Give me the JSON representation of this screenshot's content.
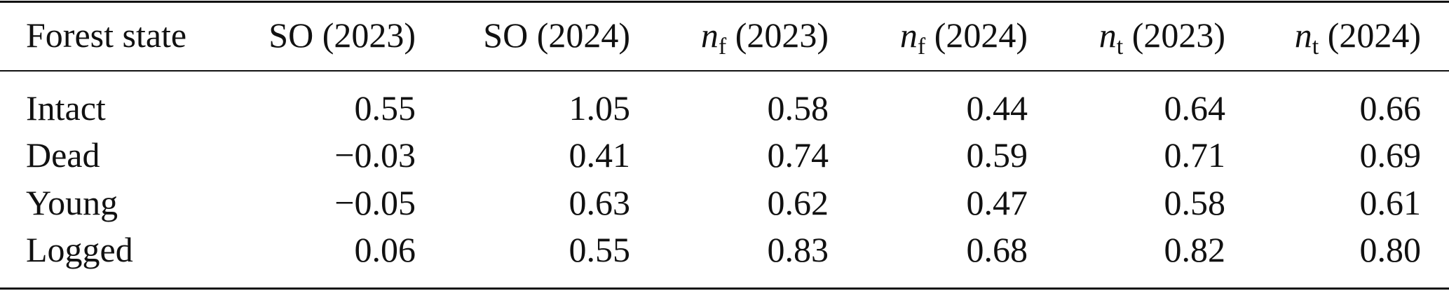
{
  "table": {
    "header": [
      {
        "text": "Forest state"
      },
      {
        "text": "SO (2023)"
      },
      {
        "text": "SO (2024)"
      },
      {
        "symbol": "n",
        "subscript": "f",
        "text": "(2023)"
      },
      {
        "symbol": "n",
        "subscript": "f",
        "text": "(2024)"
      },
      {
        "symbol": "n",
        "subscript": "t",
        "text": "(2023)"
      },
      {
        "symbol": "n",
        "subscript": "t",
        "text": "(2024)"
      }
    ],
    "rows": [
      [
        "Intact",
        "0.55",
        "1.05",
        "0.58",
        "0.44",
        "0.64",
        "0.66"
      ],
      [
        "Dead",
        "−0.03",
        "0.41",
        "0.74",
        "0.59",
        "0.71",
        "0.69"
      ],
      [
        "Young",
        "−0.05",
        "0.63",
        "0.62",
        "0.47",
        "0.58",
        "0.61"
      ],
      [
        "Logged",
        "0.06",
        "0.55",
        "0.83",
        "0.68",
        "0.82",
        "0.80"
      ]
    ]
  }
}
